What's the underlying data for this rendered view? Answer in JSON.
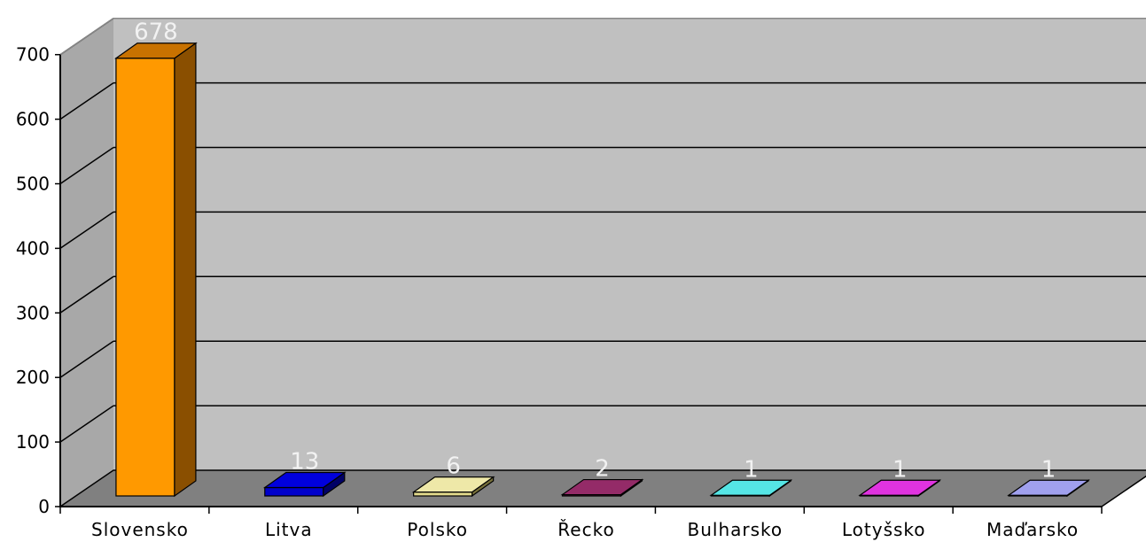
{
  "chart_data": {
    "type": "bar",
    "title": "",
    "xlabel": "",
    "ylabel": "",
    "categories": [
      "Slovensko",
      "Litva",
      "Polsko",
      "Řecko",
      "Bulharsko",
      "Lotyšsko",
      "Maďarsko"
    ],
    "values": [
      678,
      13,
      6,
      2,
      1,
      1,
      1
    ],
    "ylim": [
      0,
      700
    ],
    "yticks": [
      "0",
      "100",
      "200",
      "300",
      "400",
      "500",
      "600",
      "700"
    ],
    "data_labels": [
      "678",
      "13",
      "6",
      "2",
      "1",
      "1",
      "1"
    ],
    "grid": true,
    "legend": "none",
    "colors": [
      "#ff9900",
      "#0000cc",
      "#e0d88a",
      "#7b2354",
      "#22cccc",
      "#cc11cc",
      "#8888dd"
    ],
    "side_colors": [
      "#8a4f00",
      "#000066",
      "#77703a",
      "#3a0f28",
      "#0e6b6b",
      "#660866",
      "#44447a"
    ],
    "top_colors": [
      "#c87200",
      "#0000dd",
      "#eee8a8",
      "#942b68",
      "#55e5e5",
      "#e033e0",
      "#a0a0ee"
    ],
    "style": {
      "wall_color": "#c0c0c0",
      "floor_color": "#808080",
      "gridline_color": "#000000"
    }
  }
}
